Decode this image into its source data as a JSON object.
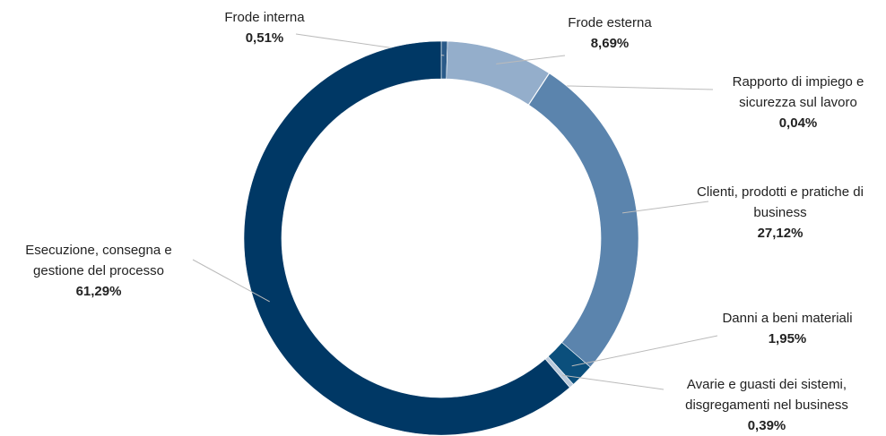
{
  "chart_data": {
    "type": "donut",
    "categories": [
      "Frode interna",
      "Frode esterna",
      "Rapporto di impiego e sicurezza sul lavoro",
      "Clienti, prodotti e pratiche di business",
      "Danni a beni materiali",
      "Avarie e guasti dei sistemi, disgregamenti nel business",
      "Esecuzione, consegna e gestione del processo"
    ],
    "values": [
      0.51,
      8.69,
      0.04,
      27.12,
      1.95,
      0.39,
      61.29
    ],
    "value_labels": [
      "0,51%",
      "8,69%",
      "0,04%",
      "27,12%",
      "1,95%",
      "0,39%",
      "61,29%"
    ],
    "colors": [
      "#2a5a88",
      "#94aecb",
      "#c5d3e3",
      "#5b84ad",
      "#0b4f7c",
      "#b8c8da",
      "#003865"
    ]
  }
}
